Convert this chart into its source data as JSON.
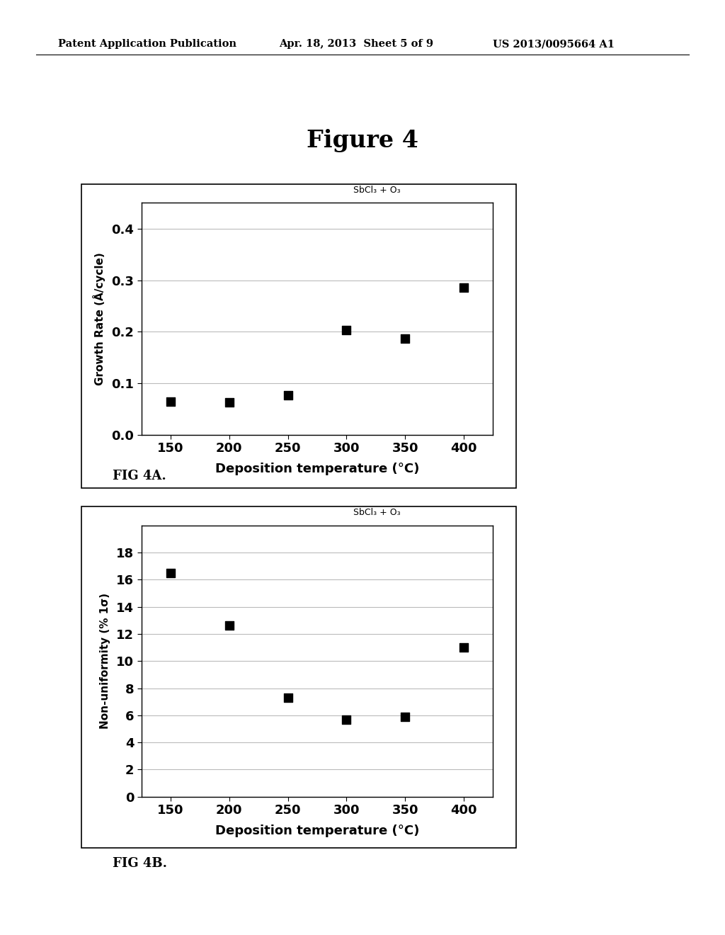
{
  "header_left": "Patent Application Publication",
  "header_mid": "Apr. 18, 2013  Sheet 5 of 9",
  "header_right": "US 2013/0095664 A1",
  "figure_title": "Figure 4",
  "plot_a": {
    "title": "SbCl₃ + O₃",
    "x": [
      150,
      200,
      250,
      300,
      350,
      400
    ],
    "y": [
      0.065,
      0.063,
      0.077,
      0.203,
      0.187,
      0.285
    ],
    "xlabel": "Deposition temperature (°C)",
    "ylabel": "Growth Rate (Å/cycle)",
    "xlim": [
      125,
      425
    ],
    "ylim": [
      0,
      0.45
    ],
    "yticks": [
      0,
      0.1,
      0.2,
      0.3,
      0.4
    ],
    "xticks": [
      150,
      200,
      250,
      300,
      350,
      400
    ],
    "caption": "FIG 4A."
  },
  "plot_b": {
    "title": "SbCl₃ + O₃",
    "x": [
      150,
      200,
      250,
      300,
      350,
      400
    ],
    "y": [
      16.5,
      12.6,
      7.3,
      5.7,
      5.9,
      11.0
    ],
    "xlabel": "Deposition temperature (°C)",
    "ylabel": "Non-uniformity (% 1σ)",
    "xlim": [
      125,
      425
    ],
    "ylim": [
      0,
      20
    ],
    "yticks": [
      0,
      2,
      4,
      6,
      8,
      10,
      12,
      14,
      16,
      18
    ],
    "xticks": [
      150,
      200,
      250,
      300,
      350,
      400
    ],
    "caption": "FIG 4B."
  },
  "marker_color": "#000000",
  "marker_size": 9,
  "bg_color": "#ffffff",
  "plot_bg": "#ffffff",
  "grid_color": "#bbbbbb",
  "box_color": "#000000"
}
